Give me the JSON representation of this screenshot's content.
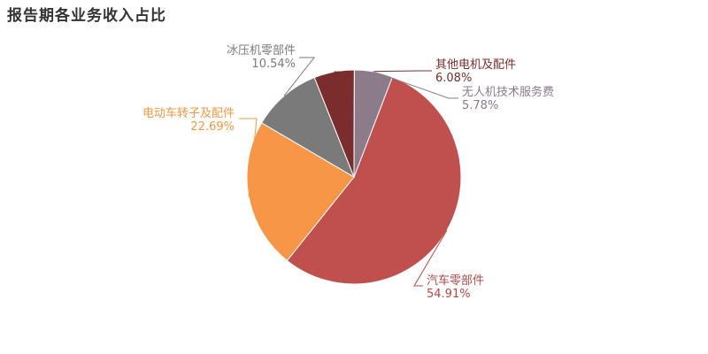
{
  "chart_data": {
    "type": "pie",
    "title": "报告期各业务收入占比",
    "slices": [
      {
        "name": "汽车零部件",
        "value": 54.91,
        "value_label": "54.91%",
        "color": "#c0504d"
      },
      {
        "name": "电动车转子及配件",
        "value": 22.69,
        "value_label": "22.69%",
        "color": "#f79646"
      },
      {
        "name": "冰压机零部件",
        "value": 10.54,
        "value_label": "10.54%",
        "color": "#7a7a7a"
      },
      {
        "name": "其他电机及配件",
        "value": 6.08,
        "value_label": "6.08%",
        "color": "#7b2c2c"
      },
      {
        "name": "无人机技术服务费",
        "value": 5.78,
        "value_label": "5.78%",
        "color": "#8b7b8b"
      }
    ],
    "label_colors": {
      "汽车零部件": "#b04a47",
      "电动车转子及配件": "#f79646",
      "冰压机零部件": "#7a7a7a",
      "其他电机及配件": "#7b2c2c",
      "无人机技术服务费": "#8b7b8b"
    }
  }
}
